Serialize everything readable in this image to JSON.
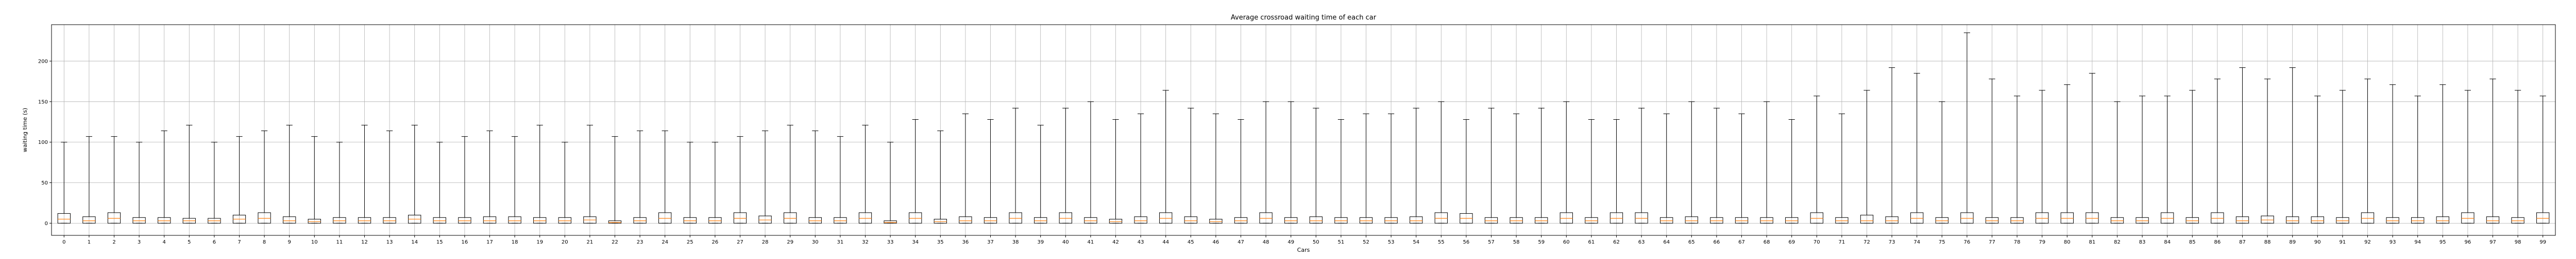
{
  "colors": {
    "box": "#000000",
    "median": "#ff7f0e",
    "grid": "#b0b0b0",
    "background": "#ffffff"
  },
  "chart_data": {
    "type": "box",
    "title": "Average crossroad waiting time of each car",
    "xlabel": "Cars",
    "ylabel": "waiting time (s)",
    "ylim": [
      -15,
      245
    ],
    "yticks": [
      0,
      50,
      100,
      150,
      200
    ],
    "grid": true,
    "categories": [
      "0",
      "1",
      "2",
      "3",
      "4",
      "5",
      "6",
      "7",
      "8",
      "9",
      "10",
      "11",
      "12",
      "13",
      "14",
      "15",
      "16",
      "17",
      "18",
      "19",
      "20",
      "21",
      "22",
      "23",
      "24",
      "25",
      "26",
      "27",
      "28",
      "29",
      "30",
      "31",
      "32",
      "33",
      "34",
      "35",
      "36",
      "37",
      "38",
      "39",
      "40",
      "41",
      "42",
      "43",
      "44",
      "45",
      "46",
      "47",
      "48",
      "49",
      "50",
      "51",
      "52",
      "53",
      "54",
      "55",
      "56",
      "57",
      "58",
      "59",
      "60",
      "61",
      "62",
      "63",
      "64",
      "65",
      "66",
      "67",
      "68",
      "69",
      "70",
      "71",
      "72",
      "73",
      "74",
      "75",
      "76",
      "77",
      "78",
      "79",
      "80",
      "81",
      "82",
      "83",
      "84",
      "85",
      "86",
      "87",
      "88",
      "89",
      "90",
      "91",
      "92",
      "93",
      "94",
      "95",
      "96",
      "97",
      "98",
      "99"
    ],
    "boxes": [
      {
        "min": 0,
        "q1": 0,
        "median": 5,
        "q3": 12,
        "max": 100
      },
      {
        "min": 0,
        "q1": 0,
        "median": 3,
        "q3": 8,
        "max": 107
      },
      {
        "min": 0,
        "q1": 0,
        "median": 6,
        "q3": 13,
        "max": 107
      },
      {
        "min": 0,
        "q1": 0,
        "median": 3,
        "q3": 7,
        "max": 100
      },
      {
        "min": 0,
        "q1": 0,
        "median": 3,
        "q3": 7,
        "max": 114
      },
      {
        "min": 0,
        "q1": 0,
        "median": 3,
        "q3": 6,
        "max": 121
      },
      {
        "min": 0,
        "q1": 0,
        "median": 3,
        "q3": 6,
        "max": 100
      },
      {
        "min": 0,
        "q1": 0,
        "median": 5,
        "q3": 10,
        "max": 107
      },
      {
        "min": 0,
        "q1": 0,
        "median": 6,
        "q3": 13,
        "max": 114
      },
      {
        "min": 0,
        "q1": 0,
        "median": 3,
        "q3": 8,
        "max": 121
      },
      {
        "min": 0,
        "q1": 0,
        "median": 2,
        "q3": 5,
        "max": 107
      },
      {
        "min": 0,
        "q1": 0,
        "median": 3,
        "q3": 7,
        "max": 100
      },
      {
        "min": 0,
        "q1": 0,
        "median": 3,
        "q3": 7,
        "max": 121
      },
      {
        "min": 0,
        "q1": 0,
        "median": 3,
        "q3": 7,
        "max": 114
      },
      {
        "min": 0,
        "q1": 0,
        "median": 5,
        "q3": 10,
        "max": 121
      },
      {
        "min": 0,
        "q1": 0,
        "median": 3,
        "q3": 7,
        "max": 100
      },
      {
        "min": 0,
        "q1": 0,
        "median": 3,
        "q3": 7,
        "max": 107
      },
      {
        "min": 0,
        "q1": 0,
        "median": 3,
        "q3": 8,
        "max": 114
      },
      {
        "min": 0,
        "q1": 0,
        "median": 3,
        "q3": 8,
        "max": 107
      },
      {
        "min": 0,
        "q1": 0,
        "median": 3,
        "q3": 7,
        "max": 121
      },
      {
        "min": 0,
        "q1": 0,
        "median": 3,
        "q3": 7,
        "max": 100
      },
      {
        "min": 0,
        "q1": 0,
        "median": 4,
        "q3": 8,
        "max": 121
      },
      {
        "min": 0,
        "q1": 0,
        "median": 1,
        "q3": 3,
        "max": 107
      },
      {
        "min": 0,
        "q1": 0,
        "median": 3,
        "q3": 7,
        "max": 114
      },
      {
        "min": 0,
        "q1": 0,
        "median": 6,
        "q3": 13,
        "max": 114
      },
      {
        "min": 0,
        "q1": 0,
        "median": 3,
        "q3": 7,
        "max": 100
      },
      {
        "min": 0,
        "q1": 0,
        "median": 3,
        "q3": 7,
        "max": 100
      },
      {
        "min": 0,
        "q1": 0,
        "median": 6,
        "q3": 13,
        "max": 107
      },
      {
        "min": 0,
        "q1": 0,
        "median": 4,
        "q3": 9,
        "max": 114
      },
      {
        "min": 0,
        "q1": 0,
        "median": 6,
        "q3": 13,
        "max": 121
      },
      {
        "min": 0,
        "q1": 0,
        "median": 3,
        "q3": 7,
        "max": 114
      },
      {
        "min": 0,
        "q1": 0,
        "median": 3,
        "q3": 7,
        "max": 107
      },
      {
        "min": 0,
        "q1": 0,
        "median": 6,
        "q3": 13,
        "max": 121
      },
      {
        "min": 0,
        "q1": 0,
        "median": 1,
        "q3": 3,
        "max": 100
      },
      {
        "min": 0,
        "q1": 0,
        "median": 6,
        "q3": 13,
        "max": 128
      },
      {
        "min": 0,
        "q1": 0,
        "median": 2,
        "q3": 5,
        "max": 114
      },
      {
        "min": 0,
        "q1": 0,
        "median": 3,
        "q3": 8,
        "max": 135
      },
      {
        "min": 0,
        "q1": 0,
        "median": 3,
        "q3": 7,
        "max": 128
      },
      {
        "min": 0,
        "q1": 0,
        "median": 6,
        "q3": 13,
        "max": 142
      },
      {
        "min": 0,
        "q1": 0,
        "median": 3,
        "q3": 7,
        "max": 121
      },
      {
        "min": 0,
        "q1": 0,
        "median": 6,
        "q3": 13,
        "max": 142
      },
      {
        "min": 0,
        "q1": 0,
        "median": 3,
        "q3": 7,
        "max": 150
      },
      {
        "min": 0,
        "q1": 0,
        "median": 2,
        "q3": 5,
        "max": 128
      },
      {
        "min": 0,
        "q1": 0,
        "median": 3,
        "q3": 8,
        "max": 135
      },
      {
        "min": 0,
        "q1": 0,
        "median": 6,
        "q3": 13,
        "max": 164
      },
      {
        "min": 0,
        "q1": 0,
        "median": 3,
        "q3": 8,
        "max": 142
      },
      {
        "min": 0,
        "q1": 0,
        "median": 2,
        "q3": 5,
        "max": 135
      },
      {
        "min": 0,
        "q1": 0,
        "median": 3,
        "q3": 7,
        "max": 128
      },
      {
        "min": 0,
        "q1": 0,
        "median": 6,
        "q3": 13,
        "max": 150
      },
      {
        "min": 0,
        "q1": 0,
        "median": 3,
        "q3": 7,
        "max": 150
      },
      {
        "min": 0,
        "q1": 0,
        "median": 3,
        "q3": 8,
        "max": 142
      },
      {
        "min": 0,
        "q1": 0,
        "median": 3,
        "q3": 7,
        "max": 128
      },
      {
        "min": 0,
        "q1": 0,
        "median": 3,
        "q3": 7,
        "max": 135
      },
      {
        "min": 0,
        "q1": 0,
        "median": 3,
        "q3": 7,
        "max": 135
      },
      {
        "min": 0,
        "q1": 0,
        "median": 3,
        "q3": 8,
        "max": 142
      },
      {
        "min": 0,
        "q1": 0,
        "median": 6,
        "q3": 13,
        "max": 150
      },
      {
        "min": 0,
        "q1": 0,
        "median": 6,
        "q3": 12,
        "max": 128
      },
      {
        "min": 0,
        "q1": 0,
        "median": 3,
        "q3": 7,
        "max": 142
      },
      {
        "min": 0,
        "q1": 0,
        "median": 3,
        "q3": 7,
        "max": 135
      },
      {
        "min": 0,
        "q1": 0,
        "median": 3,
        "q3": 7,
        "max": 142
      },
      {
        "min": 0,
        "q1": 0,
        "median": 6,
        "q3": 13,
        "max": 150
      },
      {
        "min": 0,
        "q1": 0,
        "median": 3,
        "q3": 7,
        "max": 128
      },
      {
        "min": 0,
        "q1": 0,
        "median": 6,
        "q3": 13,
        "max": 128
      },
      {
        "min": 0,
        "q1": 0,
        "median": 6,
        "q3": 13,
        "max": 142
      },
      {
        "min": 0,
        "q1": 0,
        "median": 3,
        "q3": 7,
        "max": 135
      },
      {
        "min": 0,
        "q1": 0,
        "median": 3,
        "q3": 8,
        "max": 150
      },
      {
        "min": 0,
        "q1": 0,
        "median": 3,
        "q3": 7,
        "max": 142
      },
      {
        "min": 0,
        "q1": 0,
        "median": 3,
        "q3": 7,
        "max": 135
      },
      {
        "min": 0,
        "q1": 0,
        "median": 3,
        "q3": 7,
        "max": 150
      },
      {
        "min": 0,
        "q1": 0,
        "median": 3,
        "q3": 7,
        "max": 128
      },
      {
        "min": 0,
        "q1": 0,
        "median": 6,
        "q3": 13,
        "max": 157
      },
      {
        "min": 0,
        "q1": 0,
        "median": 3,
        "q3": 7,
        "max": 135
      },
      {
        "min": 0,
        "q1": 0,
        "median": 3,
        "q3": 10,
        "max": 164
      },
      {
        "min": 0,
        "q1": 0,
        "median": 3,
        "q3": 8,
        "max": 192
      },
      {
        "min": 0,
        "q1": 0,
        "median": 6,
        "q3": 13,
        "max": 185
      },
      {
        "min": 0,
        "q1": 0,
        "median": 3,
        "q3": 7,
        "max": 150
      },
      {
        "min": 0,
        "q1": 0,
        "median": 6,
        "q3": 13,
        "max": 235
      },
      {
        "min": 0,
        "q1": 0,
        "median": 3,
        "q3": 7,
        "max": 178
      },
      {
        "min": 0,
        "q1": 0,
        "median": 3,
        "q3": 7,
        "max": 157
      },
      {
        "min": 0,
        "q1": 0,
        "median": 6,
        "q3": 13,
        "max": 164
      },
      {
        "min": 0,
        "q1": 0,
        "median": 6,
        "q3": 13,
        "max": 171
      },
      {
        "min": 0,
        "q1": 0,
        "median": 6,
        "q3": 13,
        "max": 185
      },
      {
        "min": 0,
        "q1": 0,
        "median": 3,
        "q3": 7,
        "max": 150
      },
      {
        "min": 0,
        "q1": 0,
        "median": 3,
        "q3": 7,
        "max": 157
      },
      {
        "min": 0,
        "q1": 0,
        "median": 6,
        "q3": 13,
        "max": 157
      },
      {
        "min": 0,
        "q1": 0,
        "median": 3,
        "q3": 7,
        "max": 164
      },
      {
        "min": 0,
        "q1": 0,
        "median": 6,
        "q3": 13,
        "max": 178
      },
      {
        "min": 0,
        "q1": 0,
        "median": 3,
        "q3": 8,
        "max": 192
      },
      {
        "min": 0,
        "q1": 0,
        "median": 4,
        "q3": 9,
        "max": 178
      },
      {
        "min": 0,
        "q1": 0,
        "median": 3,
        "q3": 8,
        "max": 192
      },
      {
        "min": 0,
        "q1": 0,
        "median": 3,
        "q3": 8,
        "max": 157
      },
      {
        "min": 0,
        "q1": 0,
        "median": 3,
        "q3": 7,
        "max": 164
      },
      {
        "min": 0,
        "q1": 0,
        "median": 6,
        "q3": 13,
        "max": 178
      },
      {
        "min": 0,
        "q1": 0,
        "median": 3,
        "q3": 7,
        "max": 171
      },
      {
        "min": 0,
        "q1": 0,
        "median": 3,
        "q3": 7,
        "max": 157
      },
      {
        "min": 0,
        "q1": 0,
        "median": 3,
        "q3": 8,
        "max": 171
      },
      {
        "min": 0,
        "q1": 0,
        "median": 6,
        "q3": 13,
        "max": 164
      },
      {
        "min": 0,
        "q1": 0,
        "median": 3,
        "q3": 8,
        "max": 178
      },
      {
        "min": 0,
        "q1": 0,
        "median": 3,
        "q3": 7,
        "max": 164
      },
      {
        "min": 0,
        "q1": 0,
        "median": 6,
        "q3": 13,
        "max": 157
      }
    ]
  }
}
